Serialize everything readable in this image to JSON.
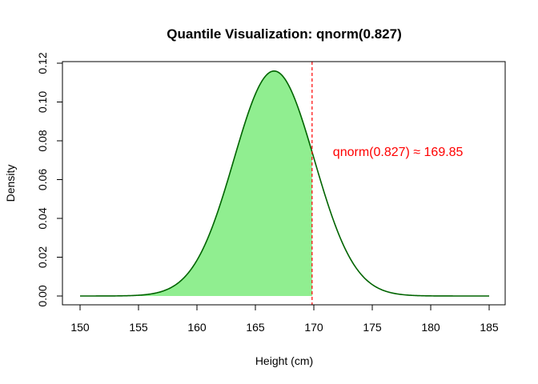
{
  "chart_data": {
    "type": "area",
    "title": "Quantile Visualization: qnorm(0.827)",
    "xlabel": "Height (cm)",
    "ylabel": "Density",
    "xlim": [
      150,
      185
    ],
    "ylim": [
      0,
      0.12
    ],
    "x_ticks": [
      "150",
      "155",
      "160",
      "165",
      "170",
      "175",
      "180",
      "185"
    ],
    "y_ticks": [
      "0.00",
      "0.02",
      "0.04",
      "0.06",
      "0.08",
      "0.10",
      "0.12"
    ],
    "distribution": {
      "family": "normal",
      "mean": 166.6,
      "sd": 3.44
    },
    "quantile": {
      "probability": 0.827,
      "value": 169.85
    },
    "annotation": "qnorm(0.827) ≈ 169.85",
    "grid": false,
    "colors": {
      "curve": "#006400",
      "shaded": "#90EE90",
      "quantile_line": "#ff0000",
      "annotation": "#ff0000"
    }
  }
}
